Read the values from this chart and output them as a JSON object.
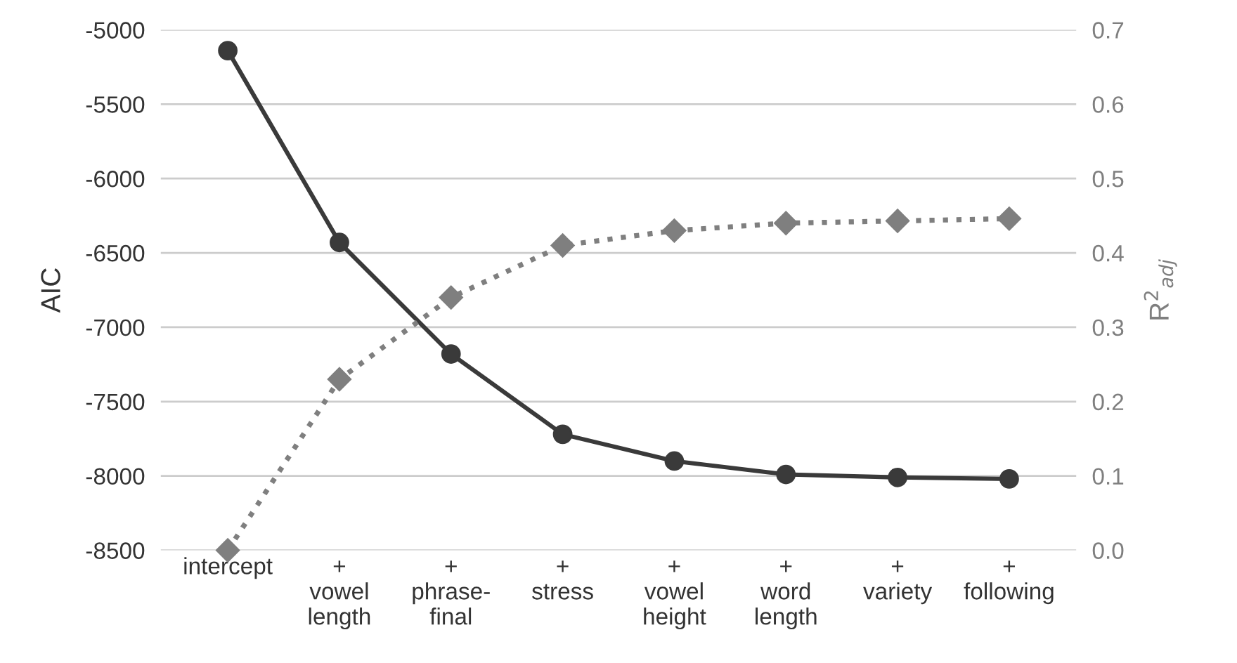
{
  "chart_data": {
    "type": "line",
    "categories": [
      "intercept",
      "+\nvowel\nlength",
      "+\nphrase-\nfinal",
      "+\nstress",
      "+\nvowel\nheight",
      "+\nword\nlength",
      "+\nvariety",
      "+\nfollowing"
    ],
    "series": [
      {
        "color": "#3a3a3a",
        "marker": "circle",
        "line_style": "solid",
        "values": [
          -5140,
          -6430,
          -7180,
          -7720,
          -7900,
          -7990,
          -8010,
          -8020
        ]
      },
      {
        "color": "#7f7f7f",
        "marker": "diamond",
        "line_style": "dotted",
        "axis": "y2",
        "values": [
          0.0,
          0.23,
          0.34,
          0.41,
          0.43,
          0.44,
          0.443,
          0.446
        ]
      }
    ],
    "ylabel": "AIC",
    "y2label": "R$^{2}$$_{adj}$",
    "ylim": [
      -8500,
      -5000
    ],
    "yticks": [
      -8500,
      -8000,
      -7500,
      -7000,
      -6500,
      -6000,
      -5500,
      -5000
    ],
    "y2lim": [
      0.0,
      0.7
    ],
    "y2ticks": [
      {
        "value": 0.0,
        "label": "0.0"
      },
      {
        "value": 0.1,
        "label": "0.1"
      },
      {
        "value": 0.2,
        "label": "0.2"
      },
      {
        "value": 0.3,
        "label": "0.3"
      },
      {
        "value": 0.4,
        "label": "0.4"
      },
      {
        "value": 0.5,
        "label": "0.5"
      },
      {
        "value": 0.6,
        "label": "0.6"
      },
      {
        "value": 0.7,
        "label": "0.7"
      }
    ],
    "grid": "y"
  }
}
